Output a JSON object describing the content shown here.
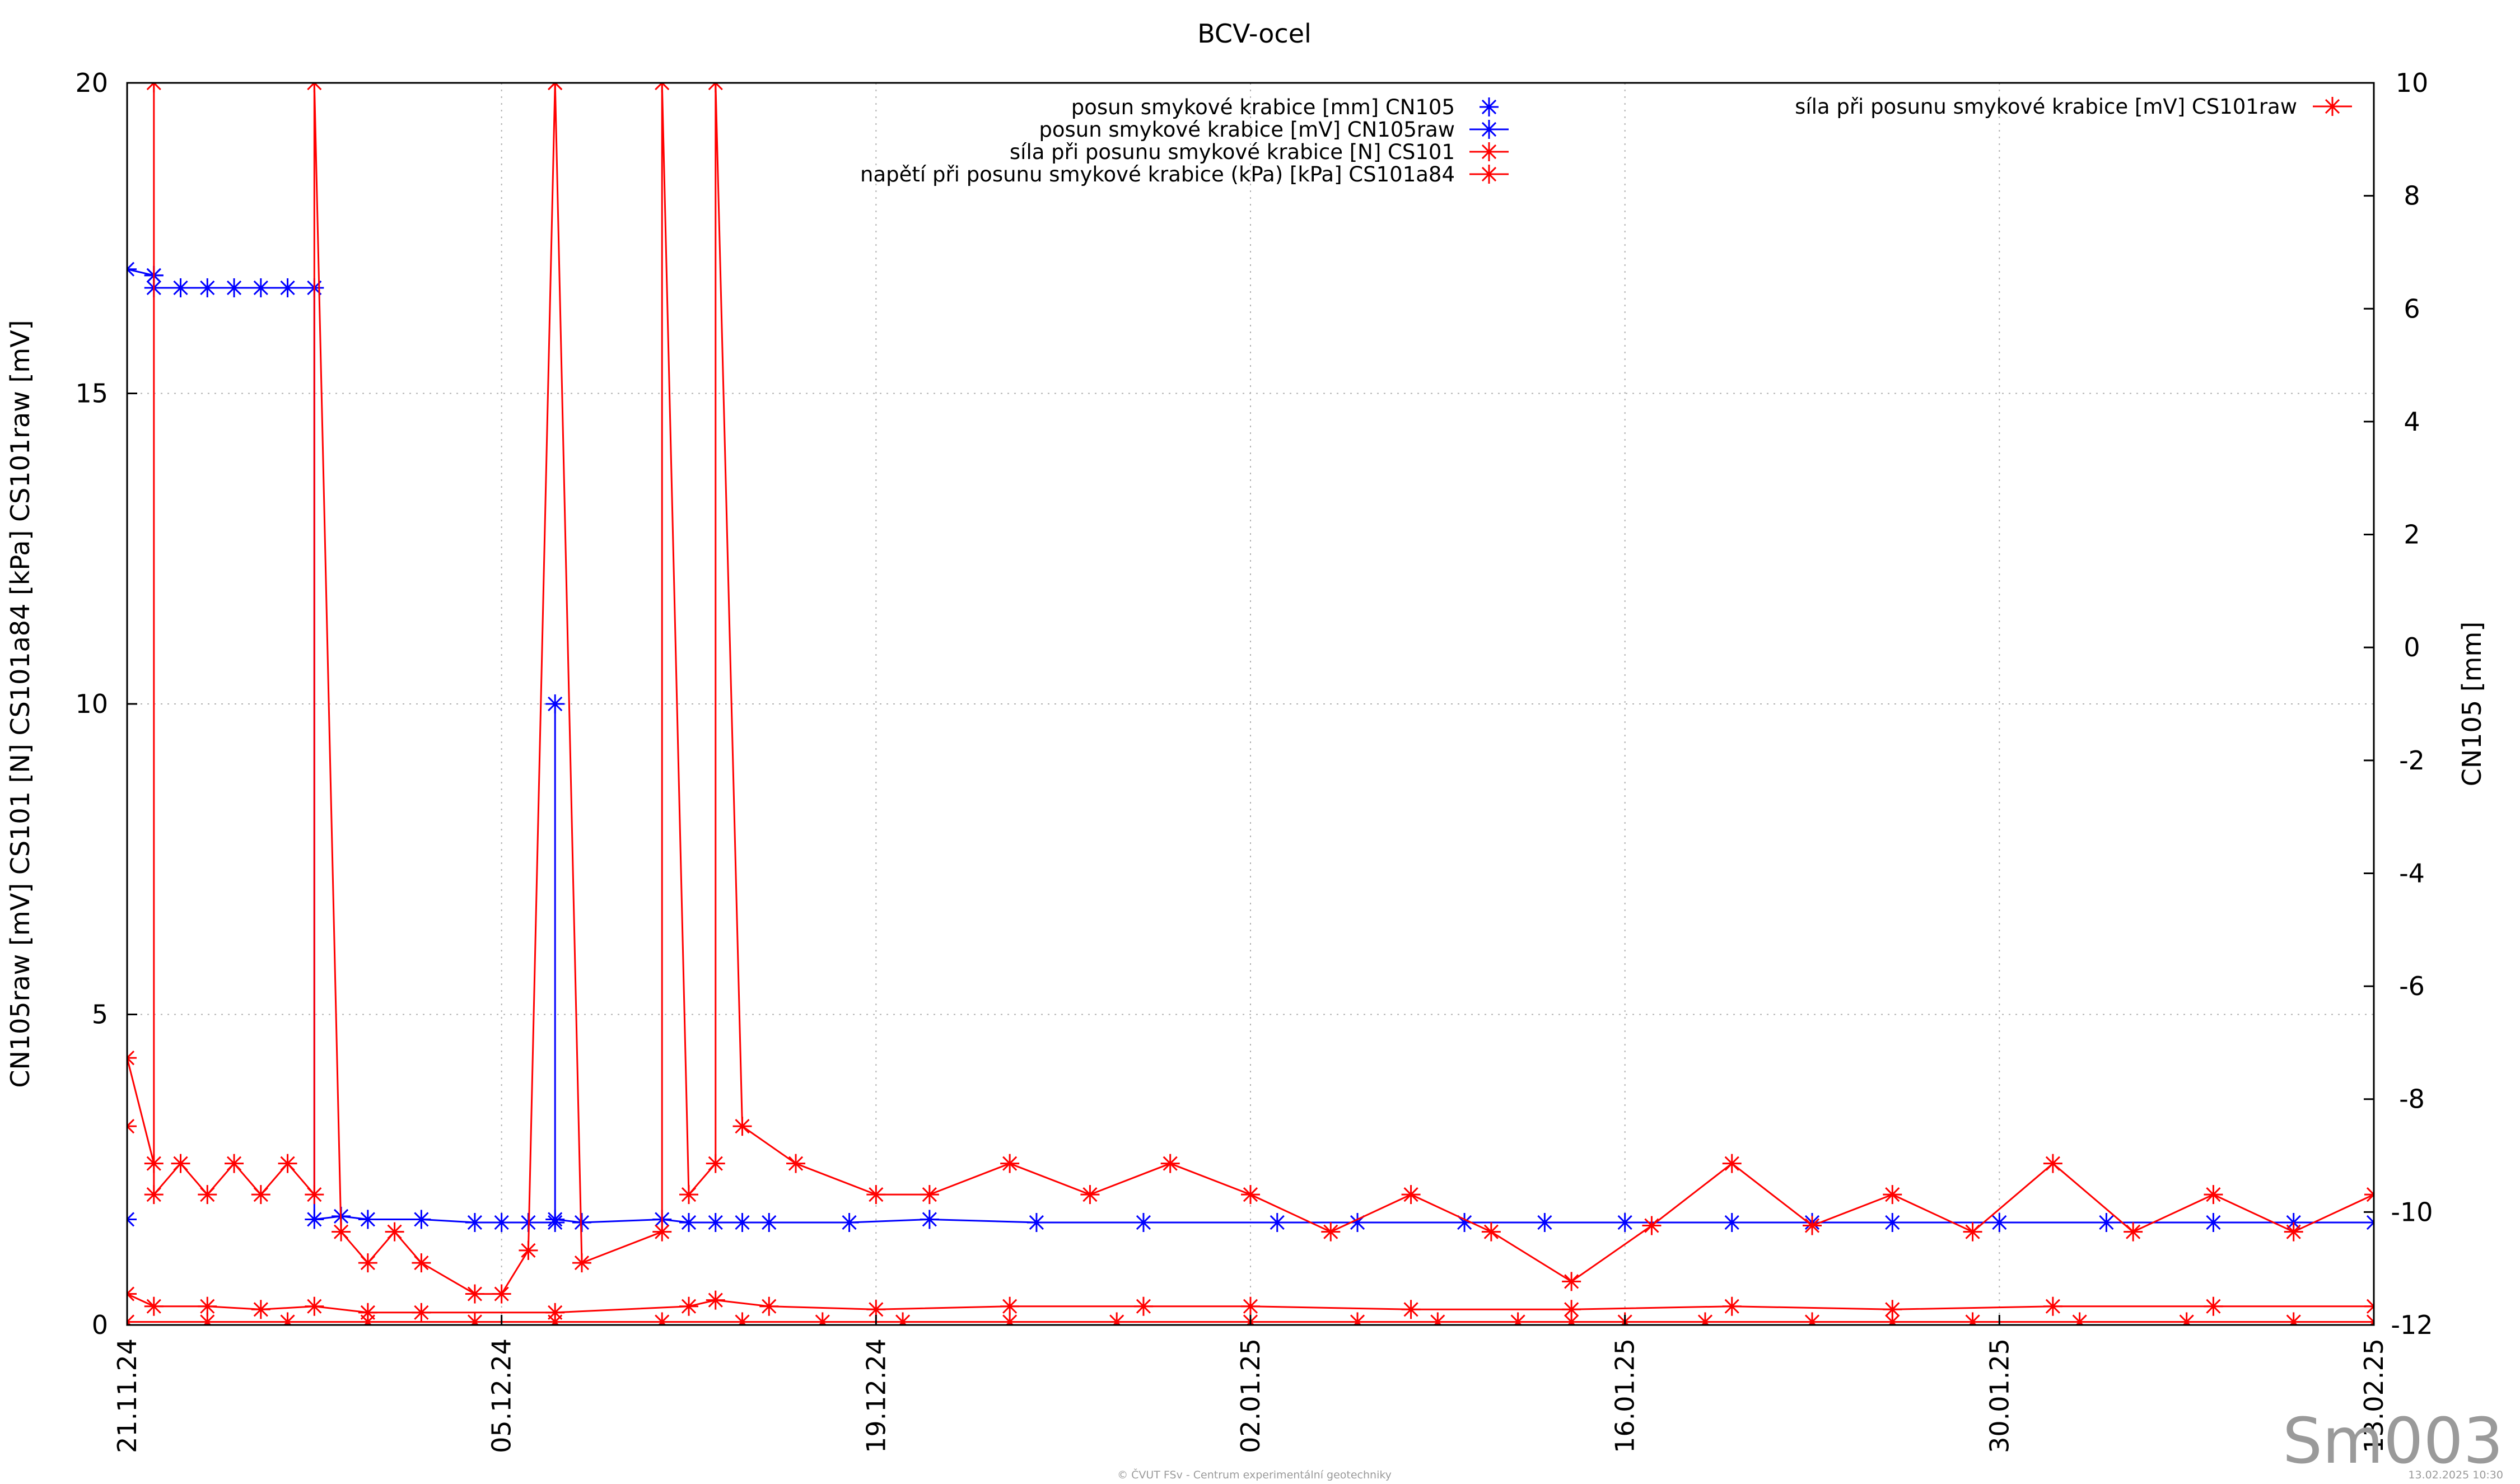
{
  "chart_data": {
    "type": "line",
    "title": "BCV-ocel",
    "ylabel": "CN105raw [mV] CS101 [N] CS101a84 [kPa] CS101raw [mV]",
    "y2label": "CN105 [mm]",
    "ylim": [
      0,
      20
    ],
    "y2lim": [
      -12,
      10
    ],
    "yticks": [
      "0",
      "5",
      "10",
      "15",
      "20"
    ],
    "y2ticks": [
      "-12",
      "-10",
      "-8",
      "-6",
      "-4",
      "-2",
      "0",
      "2",
      "4",
      "6",
      "8",
      "10"
    ],
    "xlim": [
      "2024-11-21",
      "2025-02-13"
    ],
    "xticks": [
      {
        "date": "2024-11-21",
        "label": "21.11.24"
      },
      {
        "date": "2024-12-05",
        "label": "05.12.24"
      },
      {
        "date": "2024-12-19",
        "label": "19.12.24"
      },
      {
        "date": "2025-01-02",
        "label": "02.01.25"
      },
      {
        "date": "2025-01-16",
        "label": "16.01.25"
      },
      {
        "date": "2025-01-30",
        "label": "30.01.25"
      },
      {
        "date": "2025-02-13",
        "label": "13.02.25"
      }
    ],
    "grid": true,
    "legend": [
      {
        "label": "posun smykové krabice [mm] CN105",
        "color": "#0000ff",
        "axis": "right",
        "marker": "star",
        "placement": "top-center"
      },
      {
        "label": "posun smykové krabice [mV] CN105raw",
        "color": "#0000ff",
        "axis": "left",
        "marker": "star-line",
        "placement": "top-center"
      },
      {
        "label": "síla při posunu smykové krabice [N] CS101",
        "color": "#ff0000",
        "axis": "left",
        "marker": "star-line",
        "placement": "top-center"
      },
      {
        "label": "napětí při posunu smykové krabice (kPa) [kPa] CS101a84",
        "color": "#ff0000",
        "axis": "left",
        "marker": "star-line",
        "placement": "top-center"
      },
      {
        "label": "síla při posunu smykové krabice [mV] CS101raw",
        "color": "#ff0000",
        "axis": "left",
        "marker": "star-line",
        "placement": "top-right"
      }
    ],
    "series": [
      {
        "name": "posun smykové krabice [mV] CN105raw",
        "color": "#0000ff",
        "x": [
          "2024-11-21",
          "2024-11-21",
          "2024-11-22",
          "2024-11-22",
          "2024-11-22",
          "2024-11-23",
          "2024-11-24",
          "2024-11-25",
          "2024-11-26",
          "2024-11-27",
          "2024-11-28",
          "2024-11-28",
          "2024-11-29",
          "2024-11-30",
          "2024-12-02",
          "2024-12-04",
          "2024-12-05",
          "2024-12-06",
          "2024-12-07",
          "2024-12-07",
          "2024-12-07",
          "2024-12-08",
          "2024-12-11",
          "2024-12-12",
          "2024-12-13",
          "2024-12-14",
          "2024-12-15",
          "2024-12-18",
          "2024-12-21",
          "2024-12-25",
          "2024-12-29",
          "2025-01-03",
          "2025-01-06",
          "2025-01-10",
          "2025-01-13",
          "2025-01-16",
          "2025-01-20",
          "2025-01-23",
          "2025-01-26",
          "2025-01-30",
          "2025-02-03",
          "2025-02-07",
          "2025-02-10",
          "2025-02-13"
        ],
        "y": [
          1.7,
          17.0,
          16.9,
          16.9,
          16.7,
          16.7,
          16.7,
          16.7,
          16.7,
          16.7,
          16.7,
          1.7,
          1.75,
          1.7,
          1.7,
          1.65,
          1.65,
          1.65,
          1.65,
          10.0,
          1.7,
          1.65,
          1.7,
          1.65,
          1.65,
          1.65,
          1.65,
          1.65,
          1.7,
          1.65,
          1.65,
          1.65,
          1.65,
          1.65,
          1.65,
          1.65,
          1.65,
          1.65,
          1.65,
          1.65,
          1.65,
          1.65,
          1.65,
          1.65
        ]
      },
      {
        "name": "síla při posunu smykové krabice [N] CS101",
        "color": "#ff0000",
        "x": [
          "2024-11-21",
          "2024-11-21",
          "2024-11-22",
          "2024-11-22",
          "2024-11-22",
          "2024-11-23",
          "2024-11-24",
          "2024-11-25",
          "2024-11-26",
          "2024-11-27",
          "2024-11-28",
          "2024-11-28",
          "2024-11-29",
          "2024-11-30",
          "2024-12-01",
          "2024-12-02",
          "2024-12-04",
          "2024-12-05",
          "2024-12-06",
          "2024-12-07",
          "2024-12-07",
          "2024-12-08",
          "2024-12-11",
          "2024-12-11",
          "2024-12-12",
          "2024-12-13",
          "2024-12-13",
          "2024-12-14",
          "2024-12-16",
          "2024-12-19",
          "2024-12-21",
          "2024-12-24",
          "2024-12-27",
          "2024-12-30",
          "2025-01-02",
          "2025-01-05",
          "2025-01-08",
          "2025-01-11",
          "2025-01-14",
          "2025-01-17",
          "2025-01-20",
          "2025-01-23",
          "2025-01-26",
          "2025-01-29",
          "2025-02-01",
          "2025-02-04",
          "2025-02-07",
          "2025-02-10",
          "2025-02-13"
        ],
        "y": [
          3.2,
          4.3,
          2.6,
          20.0,
          2.1,
          2.6,
          2.1,
          2.6,
          2.1,
          2.6,
          2.1,
          20.0,
          1.5,
          1.0,
          1.5,
          1.0,
          0.5,
          0.5,
          1.2,
          20.0,
          20.0,
          1.0,
          1.5,
          20.0,
          2.1,
          2.6,
          20.0,
          3.2,
          2.6,
          2.1,
          2.1,
          2.6,
          2.1,
          2.6,
          2.1,
          1.5,
          2.1,
          1.5,
          0.7,
          1.6,
          2.6,
          1.6,
          2.1,
          1.5,
          2.6,
          1.5,
          2.1,
          1.5,
          2.1
        ]
      },
      {
        "name": "napětí při posunu smykové krabice (kPa) [kPa] CS101a84",
        "color": "#ff0000",
        "x": [
          "2024-11-21",
          "2024-11-22",
          "2024-11-24",
          "2024-11-26",
          "2024-11-28",
          "2024-11-30",
          "2024-12-02",
          "2024-12-07",
          "2024-12-12",
          "2024-12-13",
          "2024-12-15",
          "2024-12-19",
          "2024-12-24",
          "2024-12-29",
          "2025-01-02",
          "2025-01-08",
          "2025-01-14",
          "2025-01-20",
          "2025-01-26",
          "2025-02-01",
          "2025-02-07",
          "2025-02-13"
        ],
        "y": [
          0.5,
          0.3,
          0.3,
          0.25,
          0.3,
          0.2,
          0.2,
          0.2,
          0.3,
          0.4,
          0.3,
          0.25,
          0.3,
          0.3,
          0.3,
          0.25,
          0.25,
          0.3,
          0.25,
          0.3,
          0.3,
          0.3
        ]
      },
      {
        "name": "síla při posunu smykové krabice [mV] CS101raw",
        "color": "#ff0000",
        "x": [
          "2024-11-21",
          "2024-11-24",
          "2024-11-27",
          "2024-11-30",
          "2024-12-04",
          "2024-12-07",
          "2024-12-11",
          "2024-12-14",
          "2024-12-17",
          "2024-12-20",
          "2024-12-24",
          "2024-12-28",
          "2025-01-02",
          "2025-01-06",
          "2025-01-09",
          "2025-01-12",
          "2025-01-14",
          "2025-01-16",
          "2025-01-19",
          "2025-01-23",
          "2025-01-26",
          "2025-01-29",
          "2025-02-02",
          "2025-02-06",
          "2025-02-10",
          "2025-02-13"
        ],
        "y": [
          0.05,
          0.05,
          0.05,
          0.05,
          0.05,
          0.05,
          0.05,
          0.05,
          0.05,
          0.05,
          0.05,
          0.05,
          0.05,
          0.05,
          0.05,
          0.05,
          0.05,
          0.05,
          0.05,
          0.05,
          0.05,
          0.05,
          0.05,
          0.05,
          0.05,
          0.05
        ]
      }
    ]
  },
  "watermark": "Sm003",
  "footer_left": "© ČVUT FSv - Centrum experimentální geotechniky",
  "footer_right": "13.02.2025 10:30"
}
